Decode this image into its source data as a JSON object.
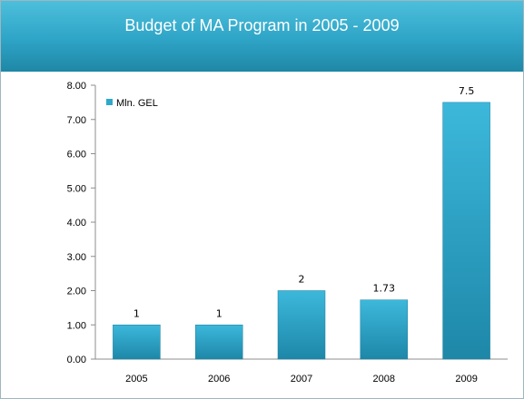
{
  "chart_data": {
    "type": "bar",
    "title": "Budget of MA Program in 2005 - 2009",
    "categories": [
      "2005",
      "2006",
      "2007",
      "2008",
      "2009"
    ],
    "series": [
      {
        "name": "Mln. GEL",
        "values": [
          1,
          1,
          2,
          1.73,
          7.5
        ]
      }
    ],
    "data_labels": [
      "1",
      "1",
      "2",
      "1.73",
      "7.5"
    ],
    "y_ticks": [
      "0.00",
      "1.00",
      "2.00",
      "3.00",
      "4.00",
      "5.00",
      "6.00",
      "7.00",
      "8.00"
    ],
    "ylim": [
      0,
      8
    ],
    "grid": false,
    "legend_position": "top-left",
    "colors": {
      "bar": "#2fa8cb",
      "header": "#2ea4c6"
    }
  }
}
